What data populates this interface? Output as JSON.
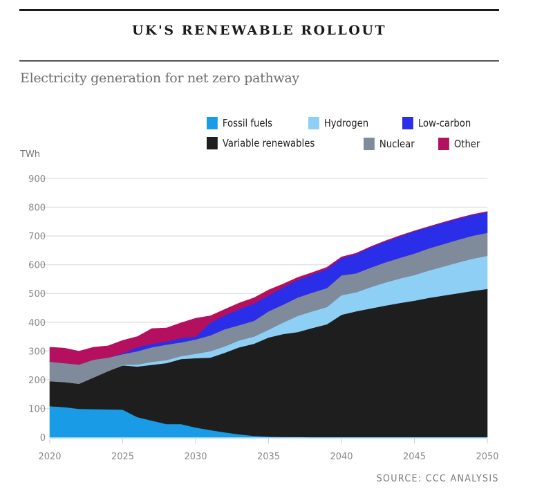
{
  "header": {
    "title": "UK'S RENEWABLE ROLLOUT",
    "subtitle": "Electricity generation for net zero pathway",
    "source": "SOURCE: CCC ANALYSIS"
  },
  "chart_data": {
    "type": "area",
    "stacked": true,
    "title": "UK'S RENEWABLE ROLLOUT",
    "subtitle": "Electricity generation for net zero pathway",
    "xlabel": "",
    "ylabel": "TWh",
    "xlim": [
      2020,
      2050
    ],
    "ylim": [
      0,
      900
    ],
    "grid": true,
    "x_ticks": [
      "2020",
      "2025",
      "2030",
      "2035",
      "2040",
      "2045",
      "2050"
    ],
    "y_ticks": [
      "0",
      "100",
      "200",
      "300",
      "400",
      "500",
      "600",
      "700",
      "800",
      "900"
    ],
    "legend_position": "top-right",
    "x": [
      2020,
      2021,
      2022,
      2023,
      2024,
      2025,
      2026,
      2027,
      2028,
      2029,
      2030,
      2031,
      2032,
      2033,
      2034,
      2035,
      2036,
      2037,
      2038,
      2039,
      2040,
      2041,
      2042,
      2043,
      2044,
      2045,
      2046,
      2047,
      2048,
      2049,
      2050
    ],
    "series": [
      {
        "name": "Fossil fuels",
        "color": "#1a9be6",
        "values": [
          108,
          105,
          99,
          98,
          97,
          96,
          70,
          58,
          46,
          46,
          34,
          25,
          17,
          10,
          5,
          2,
          1,
          1,
          0,
          0,
          0,
          0,
          0,
          0,
          0,
          0,
          0,
          0,
          0,
          0,
          0
        ]
      },
      {
        "name": "Variable renewables",
        "color": "#1e1e1e",
        "values": [
          87,
          87,
          87,
          110,
          133,
          154,
          176,
          194,
          212,
          226,
          241,
          252,
          277,
          303,
          320,
          345,
          358,
          365,
          380,
          393,
          426,
          438,
          448,
          458,
          467,
          475,
          485,
          493,
          501,
          509,
          516
        ]
      },
      {
        "name": "Hydrogen",
        "color": "#8ed0f5",
        "values": [
          0,
          0,
          0,
          0,
          0,
          2,
          7,
          10,
          10,
          10,
          15,
          22,
          22,
          24,
          25,
          27,
          40,
          56,
          58,
          60,
          68,
          66,
          74,
          80,
          85,
          89,
          95,
          101,
          107,
          112,
          115
        ]
      },
      {
        "name": "Nuclear",
        "color": "#7f8a9a",
        "values": [
          68,
          66,
          67,
          62,
          47,
          37,
          46,
          51,
          54,
          48,
          50,
          55,
          60,
          53,
          55,
          64,
          62,
          64,
          65,
          66,
          69,
          66,
          68,
          70,
          72,
          75,
          77,
          78,
          79,
          80,
          80
        ]
      },
      {
        "name": "Low-carbon",
        "color": "#2a2ee8",
        "values": [
          0,
          0,
          0,
          0,
          0,
          3,
          14,
          12,
          11,
          15,
          10,
          44,
          48,
          56,
          60,
          55,
          60,
          61,
          63,
          66,
          60,
          67,
          70,
          72,
          74,
          77,
          74,
          74,
          73,
          72,
          72
        ]
      },
      {
        "name": "Other",
        "color": "#b5105f",
        "values": [
          50,
          52,
          46,
          43,
          41,
          45,
          37,
          53,
          47,
          53,
          64,
          24,
          21,
          21,
          20,
          19,
          12,
          9,
          7,
          6,
          4,
          3,
          3,
          3,
          3,
          2,
          2,
          2,
          2,
          2,
          2
        ]
      }
    ]
  }
}
